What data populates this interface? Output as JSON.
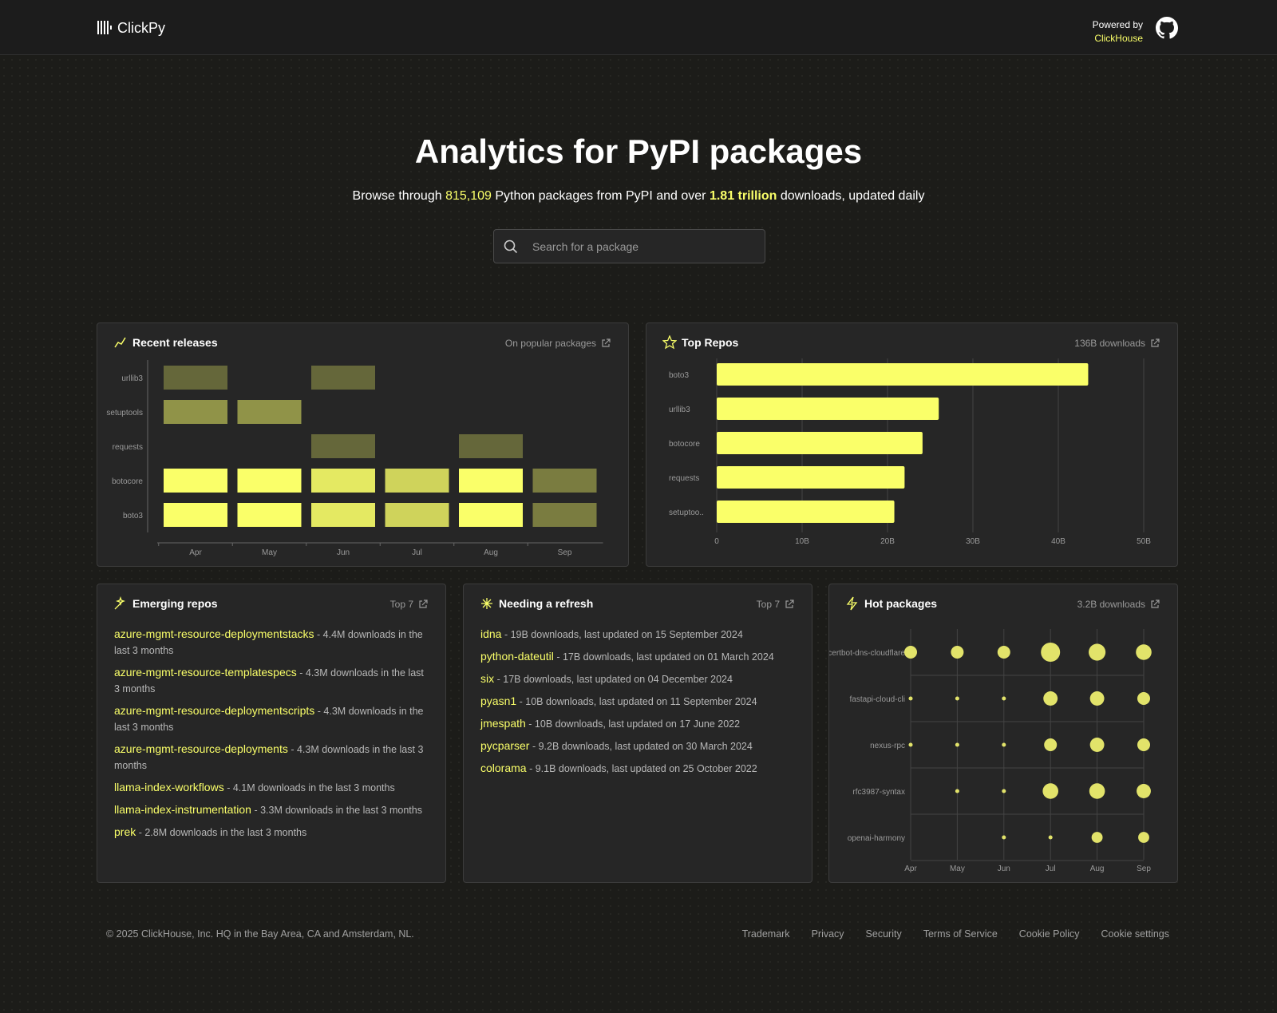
{
  "header": {
    "logo": "ClickPy",
    "powered_by": "Powered by",
    "powered_by_link": "ClickHouse"
  },
  "hero": {
    "title": "Analytics for PyPI packages",
    "subtitle": {
      "before": "Browse through",
      "packages": "815,109",
      "middle": "Python packages from PyPI and over",
      "downloads": "1.81 trillion",
      "after": "downloads, updated daily"
    },
    "search_placeholder": "Search for a package"
  },
  "chart_data": [
    {
      "type": "heatmap",
      "title": "Recent releases",
      "subtitle": "On popular packages",
      "color": "#faff69",
      "categories": [
        "Apr",
        "May",
        "Jun",
        "Jul",
        "Aug",
        "Sep"
      ],
      "series": [
        {
          "name": "urllib3",
          "values": [
            3,
            null,
            3,
            null,
            null,
            null
          ]
        },
        {
          "name": "setuptools",
          "values": [
            5,
            5,
            null,
            null,
            null,
            null
          ]
        },
        {
          "name": "requests",
          "values": [
            null,
            null,
            3,
            null,
            3,
            null
          ]
        },
        {
          "name": "botocore",
          "values": [
            10,
            10,
            9,
            8,
            10,
            4
          ]
        },
        {
          "name": "boto3",
          "values": [
            10,
            10,
            9,
            8,
            10,
            4
          ]
        }
      ]
    },
    {
      "type": "bar",
      "orientation": "horizontal",
      "title": "Top Repos",
      "subtitle": "136B downloads",
      "color": "#faff69",
      "categories": [
        "boto3",
        "urllib3",
        "botocore",
        "requests",
        "setuptoo.."
      ],
      "values": [
        43.5,
        26.0,
        24.1,
        22.0,
        20.8
      ],
      "xlim": [
        0,
        50
      ],
      "xticks": [
        0,
        {
          "value": 10,
          "label": "10B"
        },
        {
          "value": 20,
          "label": "20B"
        },
        {
          "value": 30,
          "label": "30B"
        },
        {
          "value": 40,
          "label": "40B"
        },
        {
          "value": 50,
          "label": "50B"
        }
      ],
      "grid": true
    },
    {
      "type": "bubble",
      "title": "Hot packages",
      "subtitle": "3.2B downloads",
      "color": "#e2e36a",
      "categories": [
        "Apr",
        "May",
        "Jun",
        "Jul",
        "Aug",
        "Sep"
      ],
      "series": [
        {
          "name": "certbot-dns-cloudflare",
          "values": [
            4,
            4,
            4,
            9,
            7,
            6
          ]
        },
        {
          "name": "fastapi-cloud-cli",
          "values": [
            0.4,
            0.4,
            0.4,
            5,
            5,
            4
          ]
        },
        {
          "name": "nexus-rpc",
          "values": [
            0.4,
            0.4,
            0.4,
            4,
            5,
            4
          ]
        },
        {
          "name": "rfc3987-syntax",
          "values": [
            null,
            0.4,
            0.4,
            6,
            6,
            5
          ]
        },
        {
          "name": "openai-harmony",
          "values": [
            null,
            null,
            0.4,
            0.4,
            3,
            3
          ]
        }
      ]
    }
  ],
  "emerging": {
    "title": "Emerging repos",
    "link": "Top 7",
    "items": [
      {
        "name": "azure-mgmt-resource-deploymentstacks",
        "detail": "- 4.4M downloads in the last 3 months"
      },
      {
        "name": "azure-mgmt-resource-templatespecs",
        "detail": "- 4.3M downloads in the last 3 months"
      },
      {
        "name": "azure-mgmt-resource-deploymentscripts",
        "detail": "- 4.3M downloads in the last 3 months"
      },
      {
        "name": "azure-mgmt-resource-deployments",
        "detail": "- 4.3M downloads in the last 3 months"
      },
      {
        "name": "llama-index-workflows",
        "detail": "- 4.1M downloads in the last 3 months"
      },
      {
        "name": "llama-index-instrumentation",
        "detail": "- 3.3M downloads in the last 3 months"
      },
      {
        "name": "prek",
        "detail": "- 2.8M downloads in the last 3 months"
      }
    ]
  },
  "refresh": {
    "title": "Needing a refresh",
    "link": "Top 7",
    "items": [
      {
        "name": "idna",
        "detail": "- 19B downloads, last updated on 15 September 2024"
      },
      {
        "name": "python-dateutil",
        "detail": "- 17B downloads, last updated on 01 March 2024"
      },
      {
        "name": "six",
        "detail": "- 17B downloads, last updated on 04 December 2024"
      },
      {
        "name": "pyasn1",
        "detail": "- 10B downloads, last updated on 11 September 2024"
      },
      {
        "name": "jmespath",
        "detail": "- 10B downloads, last updated on 17 June 2022"
      },
      {
        "name": "pycparser",
        "detail": "- 9.2B downloads, last updated on 30 March 2024"
      },
      {
        "name": "colorama",
        "detail": "- 9.1B downloads, last updated on 25 October 2022"
      }
    ]
  },
  "footer": {
    "copyright": "© 2025 ClickHouse, Inc. HQ in the Bay Area, CA and Amsterdam, NL.",
    "links": [
      "Trademark",
      "Privacy",
      "Security",
      "Terms of Service",
      "Cookie Policy",
      "Cookie settings"
    ]
  }
}
